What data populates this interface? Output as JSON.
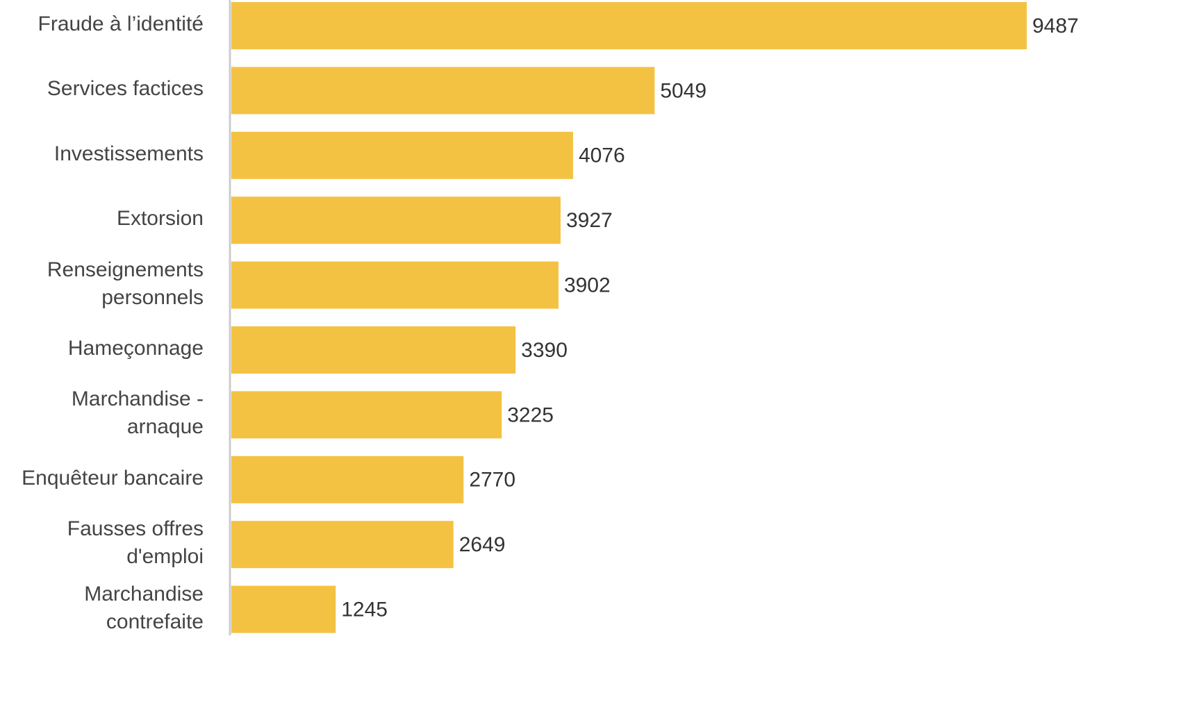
{
  "chart_data": {
    "type": "bar",
    "orientation": "horizontal",
    "categories": [
      "Fraude à l’identité",
      "Services factices",
      "Investissements",
      "Extorsion",
      "Renseignements personnels",
      "Hameçonnage",
      "Marchandise - arnaque",
      "Enquêteur bancaire",
      "Fausses offres d'emploi",
      "Marchandise contrefaite"
    ],
    "values": [
      9487,
      5049,
      4076,
      3927,
      3902,
      3390,
      3225,
      2770,
      2649,
      1245
    ],
    "color": "#f4c243"
  }
}
